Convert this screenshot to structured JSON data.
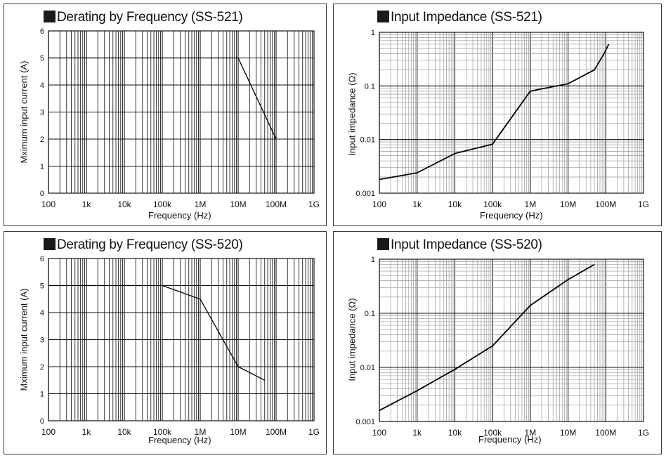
{
  "chart_data": [
    {
      "id": "c1",
      "type": "line",
      "title": "Derating by Frequency (SS-521)",
      "xlabel": "Frequency (Hz)",
      "ylabel": "Mximum input current (A)",
      "xscale": "log",
      "yscale": "linear",
      "xlim": [
        100,
        1000000000
      ],
      "ylim": [
        0,
        6
      ],
      "xticks": [
        "100",
        "1k",
        "10k",
        "100k",
        "1M",
        "10M",
        "100M",
        "1G"
      ],
      "yticks": [
        "0",
        "1",
        "2",
        "3",
        "4",
        "5",
        "6"
      ],
      "grid": true,
      "series": [
        {
          "x": [
            100,
            10000000,
            100000000
          ],
          "y": [
            5,
            5,
            2
          ]
        }
      ]
    },
    {
      "id": "c2",
      "type": "line",
      "title": "Input Impedance (SS-521)",
      "xlabel": "Frequency (Hz)",
      "ylabel": "Input impedance (Ω)",
      "xscale": "log",
      "yscale": "log",
      "xlim": [
        100,
        1000000000
      ],
      "ylim": [
        0.001,
        1
      ],
      "xticks": [
        "100",
        "1k",
        "10k",
        "100k",
        "1M",
        "10M",
        "100M",
        "1G"
      ],
      "yticks": [
        "0.001",
        "0.01",
        "0.1",
        "1"
      ],
      "grid": true,
      "series": [
        {
          "x": [
            100,
            1000,
            10000,
            100000,
            1000000,
            10000000,
            50000000,
            90000000,
            120000000
          ],
          "y": [
            0.0018,
            0.0024,
            0.0055,
            0.0082,
            0.08,
            0.11,
            0.2,
            0.4,
            0.6
          ]
        }
      ]
    },
    {
      "id": "c3",
      "type": "line",
      "title": "Derating by Frequency (SS-520)",
      "xlabel": "Frequency (Hz)",
      "ylabel": "Mximum input current (A)",
      "xscale": "log",
      "yscale": "linear",
      "xlim": [
        100,
        1000000000
      ],
      "ylim": [
        0,
        6
      ],
      "xticks": [
        "100",
        "1k",
        "10k",
        "100k",
        "1M",
        "10M",
        "100M",
        "1G"
      ],
      "yticks": [
        "0",
        "1",
        "2",
        "3",
        "4",
        "5",
        "6"
      ],
      "grid": true,
      "series": [
        {
          "x": [
            100,
            100000,
            1000000,
            10000000,
            50000000
          ],
          "y": [
            5,
            5,
            4.5,
            2,
            1.5
          ]
        }
      ]
    },
    {
      "id": "c4",
      "type": "line",
      "title": "Input Impedance (SS-520)",
      "xlabel": "Frequency (Hz)",
      "ylabel": "Input impedance (Ω)",
      "xscale": "log",
      "yscale": "log",
      "xlim": [
        100,
        1000000000
      ],
      "ylim": [
        0.001,
        1
      ],
      "xticks": [
        "100",
        "1k",
        "10k",
        "100k",
        "1M",
        "10M",
        "100M",
        "1G"
      ],
      "yticks": [
        "0.001",
        "0.01",
        "0.1",
        "1"
      ],
      "grid": true,
      "series": [
        {
          "x": [
            100,
            1000,
            10000,
            100000,
            1000000,
            10000000,
            50000000
          ],
          "y": [
            0.0016,
            0.0037,
            0.0092,
            0.025,
            0.14,
            0.42,
            0.8
          ]
        }
      ]
    }
  ]
}
